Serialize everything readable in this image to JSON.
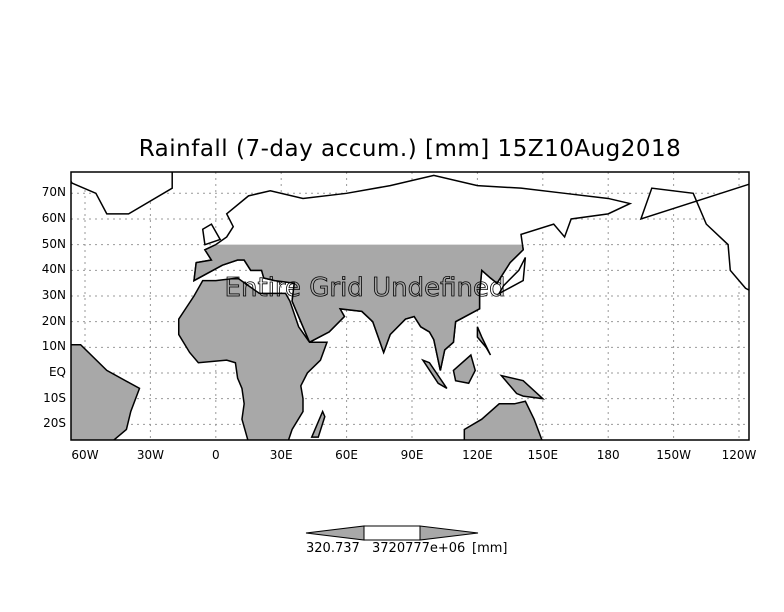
{
  "title": "Rainfall (7-day accum.) [mm] 15Z10Aug2018",
  "overlay_message": "Entire Grid Undefined",
  "lat_labels": [
    "70N",
    "60N",
    "50N",
    "40N",
    "30N",
    "20N",
    "10N",
    "EQ",
    "10S",
    "20S"
  ],
  "lon_labels": [
    "60W",
    "30W",
    "0",
    "30E",
    "60E",
    "90E",
    "120E",
    "150E",
    "180",
    "150W",
    "120W"
  ],
  "colorbar": {
    "labels": [
      "320.737",
      "3720777e+06"
    ],
    "unit": "[mm]",
    "fill_color": "#a8a8a8"
  },
  "colors": {
    "undefined_land": "#a8a8a8",
    "grid": "#999999"
  }
}
